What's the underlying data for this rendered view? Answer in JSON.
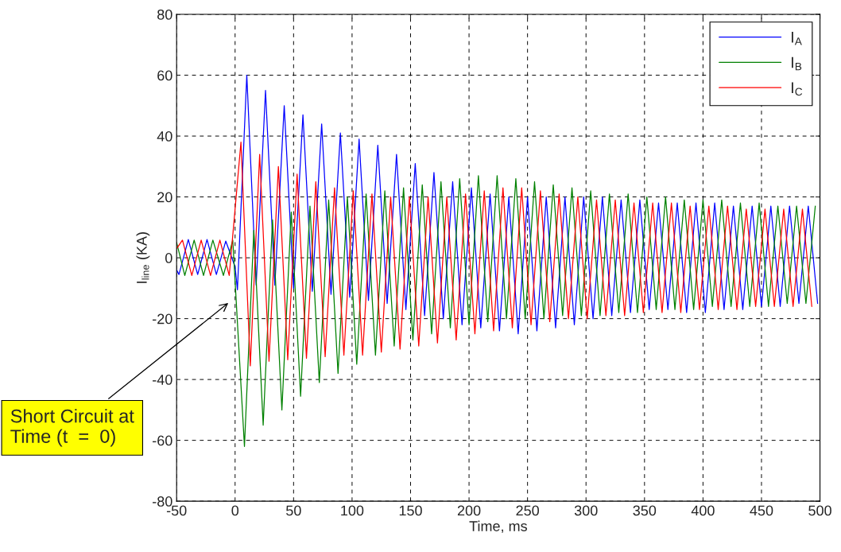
{
  "chart_data": {
    "type": "line",
    "xlabel": "Time, ms",
    "ylabel": "I$_{line}$ (KA)",
    "xlim": [
      -50,
      500
    ],
    "xticks": [
      -50,
      0,
      50,
      100,
      150,
      200,
      250,
      300,
      350,
      400,
      450,
      500
    ],
    "ylim": [
      -80,
      80
    ],
    "yticks": [
      -80,
      -60,
      -40,
      -20,
      0,
      20,
      40,
      60,
      80
    ],
    "grid": true,
    "legend": "top right",
    "line_style": "solid",
    "annotations": [
      "Short Circuit at\nTime (t  =  0)"
    ],
    "series": [
      {
        "name": "I$_{A}$",
        "color": "#0000ff",
        "x": [
          -50,
          -48,
          -40,
          -32,
          -24,
          -16,
          -8,
          0,
          2,
          10,
          18,
          26,
          34,
          42,
          50,
          58,
          66,
          74,
          82,
          90,
          98,
          106,
          114,
          122,
          130,
          138,
          146,
          154,
          162,
          170,
          178,
          186,
          194,
          202,
          210,
          218,
          226,
          234,
          242,
          250,
          258,
          266,
          274,
          282,
          290,
          298,
          306,
          314,
          322,
          330,
          338,
          346,
          354,
          362,
          370,
          378,
          386,
          394,
          402,
          410,
          418,
          426,
          434,
          442,
          450,
          458,
          466,
          474,
          482,
          490,
          498
        ],
        "values": [
          -4,
          -5.5,
          6,
          -5.5,
          6,
          -5.5,
          5.5,
          -3,
          -10.5,
          60,
          -9,
          55,
          -9,
          50,
          -10,
          47,
          -11,
          44,
          -12,
          41,
          -13,
          39,
          -14,
          37,
          -15,
          34,
          -17,
          31,
          -19,
          28,
          -20,
          25,
          -22,
          23,
          -23,
          21,
          -24,
          20,
          -25,
          20,
          -24,
          20,
          -23,
          20,
          -22,
          20,
          -20,
          20,
          -19,
          19,
          -18,
          19,
          -17,
          18,
          -17,
          18,
          -18,
          18,
          -18,
          18,
          -17,
          17,
          -17,
          17,
          -16,
          17,
          -16,
          17,
          -15,
          17,
          -15
        ]
      },
      {
        "name": "I$_{B}$",
        "color": "#008000",
        "x": [
          -50,
          -43,
          -35,
          -27,
          -19,
          -10,
          -2,
          8,
          16,
          24,
          32,
          40,
          48,
          56,
          64,
          72,
          80,
          88,
          96,
          104,
          112,
          120,
          128,
          136,
          144,
          152,
          160,
          168,
          176,
          184,
          192,
          200,
          208,
          216,
          224,
          232,
          240,
          248,
          256,
          264,
          272,
          280,
          288,
          296,
          304,
          312,
          320,
          328,
          336,
          344,
          352,
          360,
          368,
          376,
          384,
          392,
          400,
          408,
          416,
          424,
          432,
          440,
          448,
          456,
          464,
          472,
          480,
          488,
          496
        ],
        "values": [
          5,
          -5.8,
          5.8,
          -5.8,
          5.8,
          -5.8,
          5.8,
          -62,
          9,
          -55,
          12.5,
          -50,
          15,
          -45.5,
          17,
          -41,
          19,
          -38,
          20,
          -35,
          21,
          -32,
          22,
          -29,
          23,
          -27,
          24,
          -25,
          25,
          -23,
          26,
          -22,
          27,
          -21,
          27,
          -20,
          26,
          -20,
          25,
          -20,
          24,
          -19,
          23,
          -19,
          22,
          -19,
          21,
          -18,
          21,
          -18,
          20,
          -17,
          20,
          -17,
          19,
          -17,
          19,
          -16,
          19,
          -16,
          18,
          -16,
          18,
          -16,
          17,
          -15,
          17,
          -15,
          17
        ]
      },
      {
        "name": "I$_{C}$",
        "color": "#ff0000",
        "x": [
          -50,
          -45,
          -37,
          -29,
          -21,
          -13,
          -5,
          5,
          13,
          21,
          29,
          37,
          45,
          53,
          61,
          69,
          77,
          85,
          93,
          101,
          109,
          117,
          125,
          133,
          141,
          149,
          157,
          165,
          173,
          181,
          189,
          197,
          205,
          213,
          221,
          229,
          237,
          245,
          253,
          261,
          269,
          277,
          285,
          293,
          301,
          309,
          317,
          325,
          333,
          341,
          349,
          357,
          365,
          373,
          381,
          389,
          397,
          405,
          413,
          421,
          429,
          437,
          445,
          453,
          461,
          469,
          477,
          485,
          493
        ],
        "values": [
          3,
          5.8,
          -5.8,
          5.8,
          -5.8,
          5.8,
          -5.8,
          38,
          -35.5,
          34,
          -34,
          30,
          -33.5,
          27.5,
          -33,
          25,
          -32.5,
          23,
          -32,
          22,
          -32,
          21,
          -31,
          20,
          -30,
          20,
          -29,
          20,
          -28,
          20,
          -27,
          21,
          -25,
          22,
          -24,
          23,
          -23,
          23,
          -22,
          22,
          -21,
          21,
          -20,
          20,
          -20,
          19,
          -19,
          19,
          -19,
          18,
          -18,
          18,
          -18,
          18,
          -18,
          17,
          -17,
          17,
          -17,
          17,
          -17,
          16,
          -16,
          16,
          -16,
          16,
          -16,
          16,
          -16
        ]
      }
    ]
  }
}
